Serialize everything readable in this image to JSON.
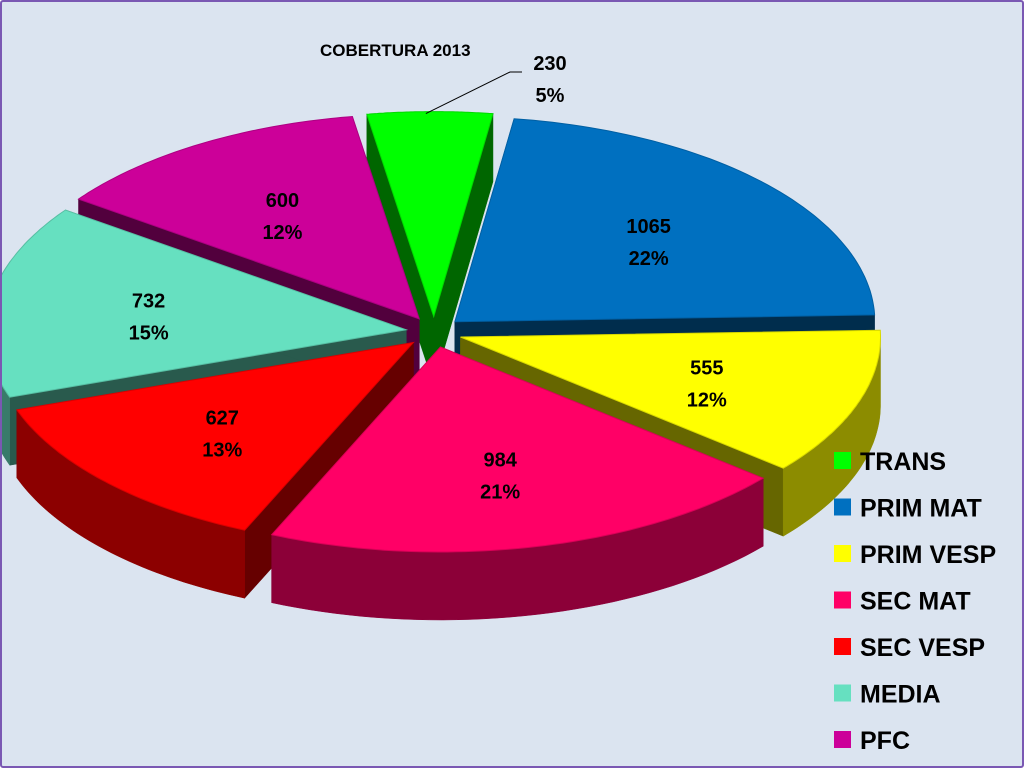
{
  "chart_data": {
    "type": "pie",
    "variant": "3d-exploded",
    "title": "COBERTURA 2013",
    "legend_position": "right",
    "slices": [
      {
        "label": "TRANS",
        "value": 230,
        "percent": "5%",
        "color": "#00ff00"
      },
      {
        "label": "PRIM MAT",
        "value": 1065,
        "percent": "22%",
        "color": "#0070c0"
      },
      {
        "label": "PRIM VESP",
        "value": 555,
        "percent": "12%",
        "color": "#ffff00"
      },
      {
        "label": "SEC MAT",
        "value": 984,
        "percent": "21%",
        "color": "#ff0066"
      },
      {
        "label": "SEC VESP",
        "value": 627,
        "percent": "13%",
        "color": "#ff0000"
      },
      {
        "label": "MEDIA",
        "value": 732,
        "percent": "15%",
        "color": "#66e0c0"
      },
      {
        "label": "PFC",
        "value": 600,
        "percent": "12%",
        "color": "#cc0099"
      }
    ]
  }
}
